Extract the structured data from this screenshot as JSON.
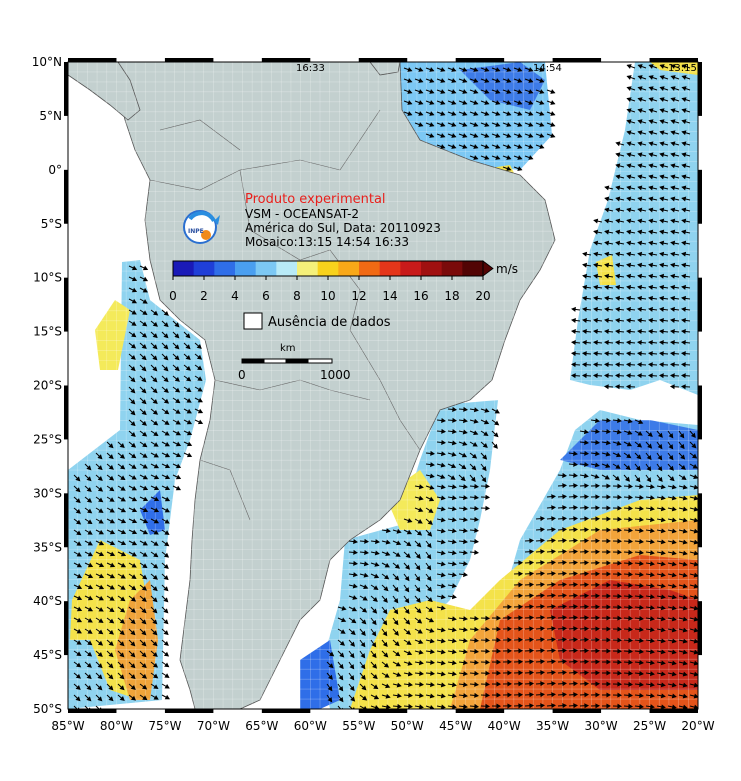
{
  "map": {
    "top_times": [
      "16:33",
      "14:54",
      "13:15"
    ],
    "lat_labels": [
      "10°N",
      "5°N",
      "0°",
      "5°S",
      "10°S",
      "15°S",
      "20°S",
      "25°S",
      "30°S",
      "35°S",
      "40°S",
      "45°S",
      "50°S"
    ],
    "lon_labels": [
      "85°W",
      "80°W",
      "75°W",
      "70°W",
      "65°W",
      "60°W",
      "55°W",
      "50°W",
      "45°W",
      "40°W",
      "35°W",
      "30°W",
      "25°W",
      "20°W"
    ]
  },
  "legend": {
    "title": "Produto experimental",
    "line1": "VSM - OCEANSAT-2",
    "line2": "América do Sul, Data: 20110923",
    "line3": "Mosaico:13:15 14:54 16:33",
    "logo_text": "INPE",
    "nodata_label": "Ausência de dados"
  },
  "colorbar": {
    "units": "m/s",
    "ticks": [
      "0",
      "2",
      "4",
      "6",
      "8",
      "10",
      "12",
      "14",
      "16",
      "18",
      "20"
    ],
    "colors": [
      "#1a1ab8",
      "#1f3fd8",
      "#2f6ee8",
      "#4a9ff0",
      "#7cc8f4",
      "#b8eaf7",
      "#f4f07a",
      "#f8d21c",
      "#f8a818",
      "#f06a14",
      "#e4361a",
      "#c81a1a",
      "#a01010",
      "#7a0a0a",
      "#520404"
    ]
  },
  "scale": {
    "unit": "km",
    "start": "0",
    "end": "1000"
  },
  "colors": {
    "land": "#c3d0cf",
    "border": "#606060",
    "arrow": "#000000"
  }
}
